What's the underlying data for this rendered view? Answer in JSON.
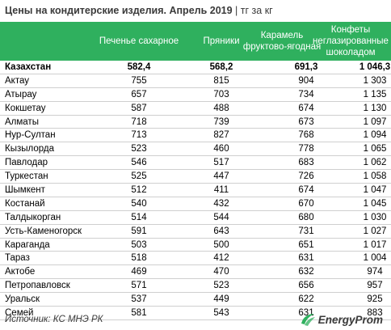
{
  "title": {
    "main": "Цены на кондитерские изделия. Апрель 2019",
    "separator": "|",
    "unit": "тг за кг"
  },
  "columns": [
    "Печенье сахарное",
    "Пряники",
    "Карамель фруктово-ягодная",
    "Конфеты неглазированные шоколадом"
  ],
  "total_row": {
    "name": "Казахстан",
    "values": [
      "582,4",
      "568,2",
      "691,3",
      "1 046,3"
    ]
  },
  "rows": [
    {
      "name": "Актау",
      "values": [
        "755",
        "815",
        "904",
        "1 303"
      ]
    },
    {
      "name": "Атырау",
      "values": [
        "657",
        "703",
        "734",
        "1 135"
      ]
    },
    {
      "name": "Кокшетау",
      "values": [
        "587",
        "488",
        "674",
        "1 130"
      ]
    },
    {
      "name": "Алматы",
      "values": [
        "718",
        "739",
        "673",
        "1 097"
      ]
    },
    {
      "name": "Нур-Султан",
      "values": [
        "713",
        "827",
        "768",
        "1 094"
      ]
    },
    {
      "name": "Кызылорда",
      "values": [
        "523",
        "460",
        "778",
        "1 065"
      ]
    },
    {
      "name": "Павлодар",
      "values": [
        "546",
        "517",
        "683",
        "1 062"
      ]
    },
    {
      "name": "Туркестан",
      "values": [
        "525",
        "447",
        "726",
        "1 058"
      ]
    },
    {
      "name": "Шымкент",
      "values": [
        "512",
        "411",
        "674",
        "1 047"
      ]
    },
    {
      "name": "Костанай",
      "values": [
        "540",
        "432",
        "670",
        "1 045"
      ]
    },
    {
      "name": "Талдыкорган",
      "values": [
        "514",
        "544",
        "680",
        "1 030"
      ]
    },
    {
      "name": "Усть-Каменогорск",
      "values": [
        "591",
        "643",
        "731",
        "1 027"
      ]
    },
    {
      "name": "Караганда",
      "values": [
        "503",
        "500",
        "651",
        "1 017"
      ]
    },
    {
      "name": "Тараз",
      "values": [
        "518",
        "412",
        "631",
        "1 004"
      ]
    },
    {
      "name": "Актобе",
      "values": [
        "469",
        "470",
        "632",
        "974"
      ]
    },
    {
      "name": "Петропавловск",
      "values": [
        "571",
        "523",
        "656",
        "957"
      ]
    },
    {
      "name": "Уральск",
      "values": [
        "537",
        "449",
        "622",
        "925"
      ]
    },
    {
      "name": "Семей",
      "values": [
        "581",
        "543",
        "631",
        "883"
      ]
    }
  ],
  "footer": {
    "source": "Источник: КС МНЭ РК",
    "logo_icon": "energyprom-logo-icon",
    "logo_text": "EnergyProm"
  },
  "colors": {
    "header_bg": "#2fb05e",
    "header_text": "#ffffff",
    "row_line": "#cfcfcf",
    "logo_green": "#2fb05e"
  }
}
